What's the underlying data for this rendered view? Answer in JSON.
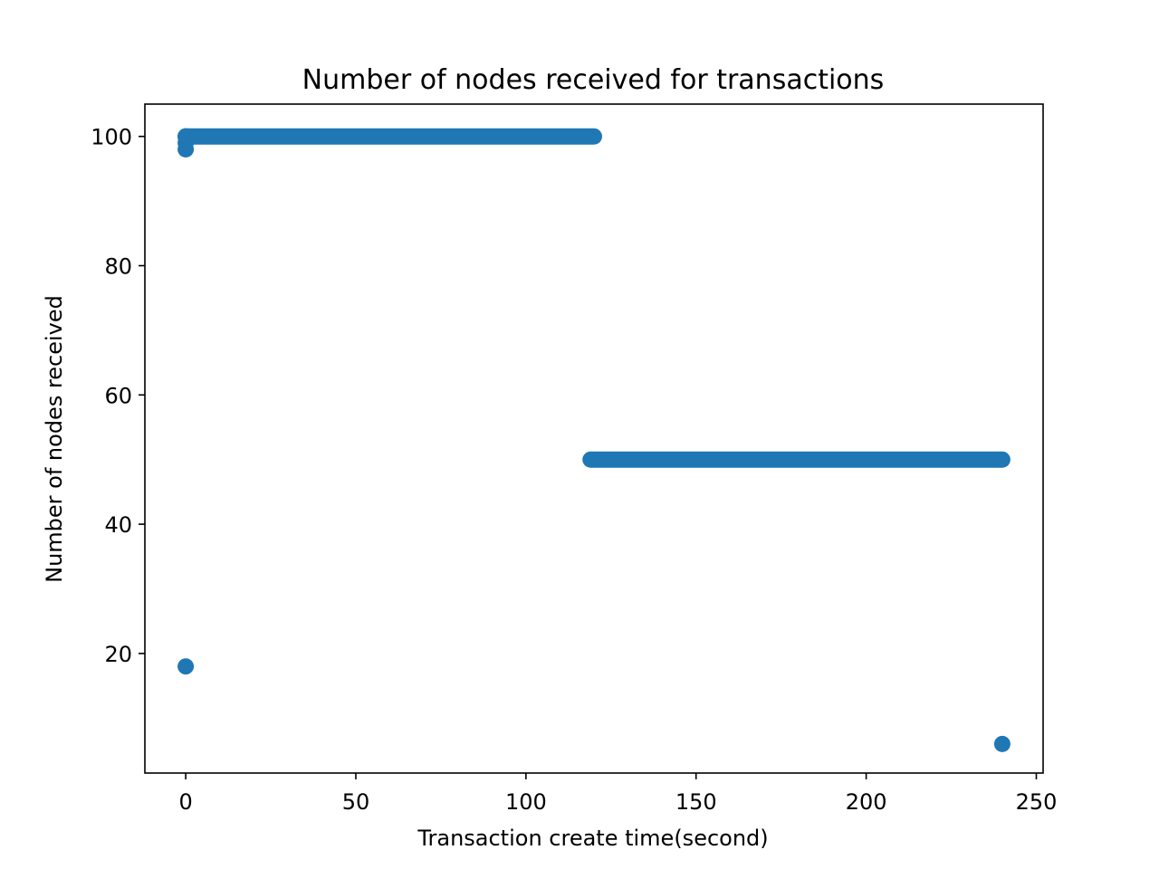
{
  "chart_data": {
    "type": "scatter",
    "title": "Number of nodes received for transactions",
    "xlabel": "Transaction create time(second)",
    "ylabel": "Number of nodes received",
    "xlim": [
      -12,
      252
    ],
    "ylim": [
      1.5,
      105
    ],
    "xticks": [
      0,
      50,
      100,
      150,
      200,
      250
    ],
    "yticks": [
      20,
      40,
      60,
      80,
      100
    ],
    "grid": false,
    "color": "#1f77b4",
    "points": {
      "x": [
        0,
        0,
        0,
        0,
        0
      ],
      "y": [
        18,
        98,
        99,
        100,
        100
      ]
    },
    "runs": [
      {
        "x_start": 0,
        "x_end": 120,
        "y": 100
      },
      {
        "x_start": 119,
        "x_end": 240,
        "y": 50
      }
    ],
    "extra_points": {
      "x": [
        240
      ],
      "y": [
        6
      ]
    }
  }
}
